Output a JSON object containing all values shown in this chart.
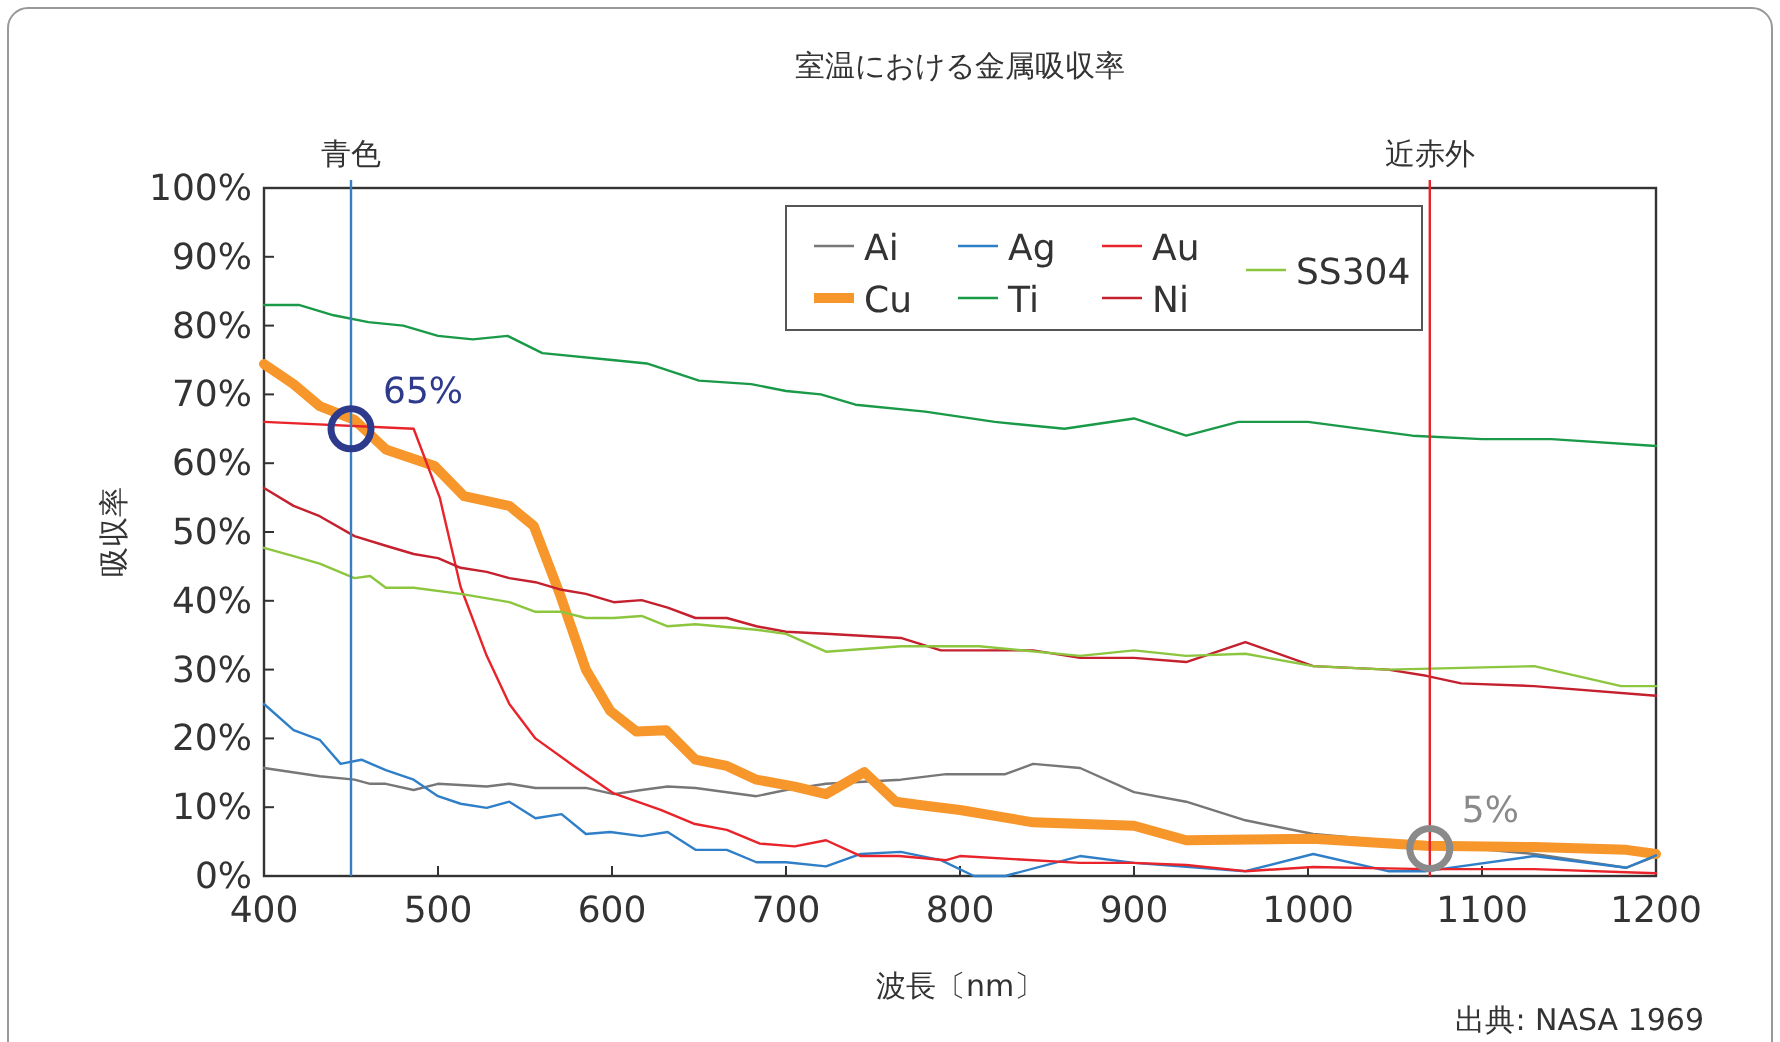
{
  "chart_data": {
    "type": "line",
    "title": "室温における金属吸収率",
    "xlabel": "波長〔nm〕",
    "ylabel": "吸収率",
    "xlim": [
      400,
      1200
    ],
    "xticks": [
      400,
      500,
      600,
      700,
      800,
      900,
      1000,
      1100,
      1200
    ],
    "ylim": [
      0,
      100
    ],
    "yticks": [
      {
        "value": 0,
        "label": "0%"
      },
      {
        "value": 10,
        "label": "10%"
      },
      {
        "value": 20,
        "label": "20%"
      },
      {
        "value": 30,
        "label": "30%"
      },
      {
        "value": 40,
        "label": "40%"
      },
      {
        "value": 50,
        "label": "50%"
      },
      {
        "value": 60,
        "label": "60%"
      },
      {
        "value": 70,
        "label": "70%"
      },
      {
        "value": 80,
        "label": "80%"
      },
      {
        "value": 90,
        "label": "90%"
      },
      {
        "value": 100,
        "label": "100%"
      }
    ],
    "grid": false,
    "legend": "top",
    "marker": "none",
    "line_style": "solid",
    "ref_lines": [
      {
        "axis": "x",
        "value": 450,
        "label": "青色",
        "color": "#3a7dc0"
      },
      {
        "axis": "x",
        "value": 1070,
        "label": "近赤外",
        "color": "#e8232a"
      }
    ],
    "annotations": [
      {
        "text": "65%",
        "x": 450,
        "y": 65
      },
      {
        "text": "5%",
        "x": 1070,
        "y": 4
      },
      "出典: NASA 1969"
    ],
    "series": [
      {
        "name": "Ai",
        "color": "#777777",
        "x": [
          400,
          432,
          452,
          461,
          470,
          486,
          500,
          528,
          541,
          556,
          585,
          601,
          617,
          632,
          648,
          683,
          700,
          723,
          766,
          792,
          811,
          826,
          842,
          869,
          900,
          930,
          964,
          1003,
          1130,
          1183,
          1200
        ],
        "values": [
          15.7,
          14.5,
          14,
          13.4,
          13.4,
          12.5,
          13.4,
          13,
          13.4,
          12.8,
          12.8,
          11.9,
          12.5,
          13,
          12.8,
          11.6,
          12.5,
          13.4,
          14,
          14.8,
          14.8,
          14.8,
          16.3,
          15.7,
          12.2,
          10.8,
          8.1,
          6.1,
          3.2,
          1.2,
          2.9
        ]
      },
      {
        "name": "Cu",
        "color": "#f7962a",
        "x": [
          400,
          417,
          432,
          452,
          470,
          498,
          515,
          541,
          555,
          570,
          585,
          599,
          614,
          631,
          648,
          666,
          683,
          705,
          723,
          745,
          763,
          780,
          800,
          842,
          900,
          930,
          1003,
          1068,
          1130,
          1183,
          1200
        ],
        "values": [
          74.4,
          71.5,
          68.3,
          66.3,
          62,
          59.6,
          55.2,
          53.8,
          50.9,
          41,
          30,
          24,
          21,
          21.2,
          16.9,
          16,
          14,
          13,
          11.9,
          15.1,
          10.8,
          10.2,
          9.6,
          7.8,
          7.3,
          5.2,
          5.4,
          4.4,
          4.2,
          3.8,
          3.2
        ]
      },
      {
        "name": "Ag",
        "color": "#2f7fc8",
        "x": [
          400,
          417,
          432,
          444,
          456,
          470,
          486,
          500,
          513,
          528,
          541,
          556,
          571,
          585,
          599,
          617,
          632,
          648,
          666,
          683,
          700,
          723,
          743,
          766,
          789,
          808,
          826,
          869,
          900,
          964,
          1003,
          1046,
          1068,
          1130,
          1183,
          1200
        ],
        "values": [
          25,
          21.2,
          19.8,
          16.3,
          16.9,
          15.4,
          14,
          11.6,
          10.5,
          9.9,
          10.8,
          8.4,
          9,
          6.1,
          6.4,
          5.8,
          6.4,
          3.8,
          3.8,
          2,
          2,
          1.4,
          3.2,
          3.5,
          2.3,
          0,
          0,
          2.9,
          1.9,
          0.7,
          3.2,
          0.7,
          0.7,
          2.9,
          1.2,
          3
        ]
      },
      {
        "name": "Ti",
        "color": "#1a9a48",
        "x": [
          400,
          420,
          440,
          460,
          480,
          500,
          520,
          540,
          560,
          600,
          620,
          650,
          680,
          700,
          720,
          740,
          780,
          820,
          860,
          900,
          930,
          960,
          1000,
          1060,
          1100,
          1140,
          1200
        ],
        "values": [
          83,
          83,
          81.5,
          80.5,
          80,
          78.5,
          78,
          78.5,
          76,
          75,
          74.5,
          72,
          71.5,
          70.5,
          70,
          68.5,
          67.5,
          66,
          65,
          66.5,
          64,
          66,
          66,
          64,
          63.5,
          63.5,
          62.5
        ]
      },
      {
        "name": "Au",
        "color": "#e8232a",
        "x": [
          400,
          486,
          501,
          513,
          528,
          541,
          556,
          578,
          601,
          628,
          647,
          666,
          685,
          705,
          723,
          743,
          765,
          792,
          800,
          869,
          900,
          930,
          964,
          1003,
          1068,
          1130,
          1200
        ],
        "values": [
          66,
          65,
          55,
          42,
          32,
          25,
          20,
          16,
          12,
          9.6,
          7.6,
          6.7,
          4.7,
          4.3,
          5.2,
          2.9,
          2.9,
          2.3,
          2.9,
          1.9,
          1.9,
          1.6,
          0.7,
          1.3,
          1,
          1,
          0.4
        ]
      },
      {
        "name": "Ni",
        "color": "#c4202e",
        "x": [
          400,
          417,
          432,
          452,
          470,
          486,
          500,
          513,
          528,
          541,
          556,
          571,
          585,
          601,
          617,
          632,
          648,
          666,
          683,
          700,
          723,
          766,
          789,
          811,
          842,
          869,
          900,
          930,
          964,
          1003,
          1046,
          1068,
          1088,
          1130,
          1200
        ],
        "values": [
          56.4,
          53.8,
          52.3,
          49.4,
          48,
          46.8,
          46.2,
          44.8,
          44.2,
          43.3,
          42.7,
          41.6,
          41,
          39.8,
          40.1,
          39,
          37.5,
          37.5,
          36.3,
          35.5,
          35.2,
          34.6,
          32.8,
          32.8,
          32.8,
          31.7,
          31.7,
          31.1,
          34,
          30.5,
          30,
          29.1,
          28,
          27.6,
          26.2
        ]
      },
      {
        "name": "SS304",
        "color": "#8cc63f",
        "x": [
          400,
          417,
          432,
          452,
          461,
          470,
          486,
          513,
          541,
          556,
          571,
          585,
          601,
          617,
          632,
          648,
          683,
          700,
          723,
          766,
          811,
          869,
          900,
          930,
          964,
          1003,
          1046,
          1130,
          1180,
          1200
        ],
        "values": [
          47.7,
          46.5,
          45.4,
          43.3,
          43.6,
          41.9,
          41.9,
          41,
          39.8,
          38.4,
          38.4,
          37.5,
          37.5,
          37.8,
          36.3,
          36.6,
          35.8,
          35.2,
          32.6,
          33.4,
          33.4,
          32,
          32.8,
          32,
          32.3,
          30.5,
          30,
          30.5,
          27.6,
          27.6
        ]
      }
    ]
  }
}
